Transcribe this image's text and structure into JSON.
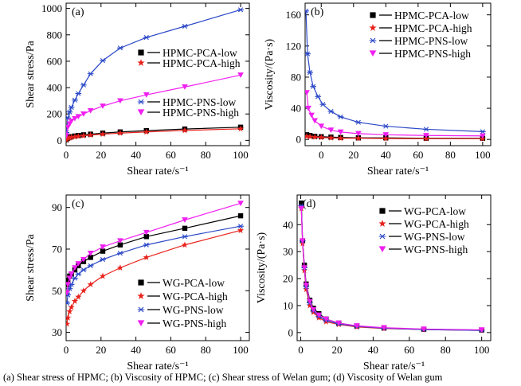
{
  "caption": "(a) Shear stress of HPMC; (b) Viscosity of HPMC; (c) Shear stress of Welan gum; (d) Viscosity of Welan gum",
  "chart_data": [
    {
      "type": "line",
      "panel_label": "(a)",
      "xlabel": "Shear rate/s⁻¹",
      "ylabel": "Shear stress/Pa",
      "xlim": [
        0,
        105
      ],
      "ylim": [
        -40,
        1040
      ],
      "xticks": [
        0,
        20,
        40,
        60,
        80,
        100
      ],
      "yticks": [
        0,
        200,
        400,
        600,
        800,
        1000
      ],
      "grid": false,
      "series": [
        {
          "name": "HPMC-PCA-low",
          "color": "#000000",
          "marker": "square",
          "x": [
            0.1,
            1,
            2,
            3,
            5,
            7,
            10,
            14,
            21,
            31,
            46,
            68,
            100
          ],
          "y": [
            5,
            18,
            24,
            28,
            33,
            37,
            42,
            47,
            55,
            64,
            74,
            86,
            100
          ]
        },
        {
          "name": "HPMC-PCA-high",
          "color": "#e8221c",
          "marker": "star",
          "x": [
            0.1,
            1,
            2,
            3,
            5,
            7,
            10,
            14,
            21,
            31,
            46,
            68,
            100
          ],
          "y": [
            4,
            14,
            19,
            23,
            27,
            31,
            35,
            40,
            47,
            55,
            64,
            75,
            88
          ]
        },
        {
          "name": "HPMC-PNS-low",
          "color": "#2a47c7",
          "marker": "asterisk",
          "x": [
            0.1,
            1,
            2,
            3,
            5,
            7,
            10,
            14,
            21,
            31,
            46,
            68,
            100
          ],
          "y": [
            60,
            170,
            215,
            250,
            305,
            355,
            420,
            505,
            605,
            700,
            780,
            865,
            990
          ]
        },
        {
          "name": "HPMC-PNS-high",
          "color": "#f01ff0",
          "marker": "triangle-down",
          "x": [
            0.1,
            1,
            2,
            3,
            5,
            7,
            10,
            14,
            21,
            31,
            46,
            68,
            100
          ],
          "y": [
            35,
            100,
            125,
            145,
            165,
            180,
            200,
            225,
            260,
            300,
            345,
            405,
            495
          ]
        }
      ]
    },
    {
      "type": "line",
      "panel_label": "(b)",
      "xlabel": "Shear rate/s⁻¹",
      "ylabel": "Viscosity/(Pa·s)",
      "xlim": [
        -10,
        105
      ],
      "ylim": [
        -8,
        175
      ],
      "xticks": [
        0,
        20,
        40,
        60,
        80,
        100
      ],
      "yticks": [
        0,
        40,
        80,
        120,
        160
      ],
      "grid": false,
      "series": [
        {
          "name": "HPMC-PCA-low",
          "color": "#000000",
          "marker": "square",
          "x": [
            -9,
            -7,
            -4,
            0,
            6,
            12,
            23,
            40,
            65,
            100
          ],
          "y": [
            6,
            5,
            4,
            3.5,
            3,
            2.5,
            2,
            2,
            1.5,
            1.5
          ]
        },
        {
          "name": "HPMC-PCA-high",
          "color": "#e8221c",
          "marker": "star",
          "x": [
            -9,
            -7,
            -4,
            0,
            6,
            12,
            23,
            40,
            65,
            100
          ],
          "y": [
            4,
            3.5,
            3,
            2.5,
            2,
            1.5,
            1.5,
            1.2,
            1,
            1
          ]
        },
        {
          "name": "HPMC-PNS-low",
          "color": "#2a47c7",
          "marker": "asterisk",
          "x": [
            -9.5,
            -8.5,
            -7,
            -5,
            -2,
            1,
            6,
            12,
            23,
            40,
            65,
            100
          ],
          "y": [
            165,
            110,
            86,
            68,
            55,
            45,
            36,
            29,
            22,
            17,
            13,
            10
          ]
        },
        {
          "name": "HPMC-PNS-high",
          "color": "#f01ff0",
          "marker": "triangle-down",
          "x": [
            -9,
            -8,
            -6,
            -4,
            0,
            6,
            12,
            23,
            40,
            65,
            100
          ],
          "y": [
            60,
            40,
            31,
            24,
            17,
            12,
            9.5,
            7.5,
            6,
            5,
            4.5
          ]
        }
      ]
    },
    {
      "type": "line",
      "panel_label": "(c)",
      "xlabel": "Shear rate/s⁻¹",
      "ylabel": "Shear stress/Pa",
      "xlim": [
        0,
        105
      ],
      "ylim": [
        26,
        96
      ],
      "xticks": [
        0,
        20,
        40,
        60,
        80,
        100
      ],
      "yticks": [
        30,
        50,
        70,
        90
      ],
      "grid": false,
      "series": [
        {
          "name": "WG-PCA-low",
          "color": "#000000",
          "marker": "square",
          "x": [
            0.5,
            1,
            2,
            3,
            5,
            7,
            10,
            14,
            21,
            31,
            46,
            68,
            100
          ],
          "y": [
            53,
            55,
            57,
            58,
            60,
            62,
            64,
            66,
            69,
            72,
            76,
            80,
            86
          ]
        },
        {
          "name": "WG-PCA-high",
          "color": "#e8221c",
          "marker": "star",
          "x": [
            0.5,
            1,
            2,
            3,
            5,
            7,
            10,
            14,
            21,
            31,
            46,
            68,
            100
          ],
          "y": [
            34,
            37,
            40,
            42,
            45,
            47,
            50,
            53,
            57,
            61,
            66,
            72,
            79
          ]
        },
        {
          "name": "WG-PNS-low",
          "color": "#2a47c7",
          "marker": "asterisk",
          "x": [
            0.5,
            1,
            2,
            3,
            5,
            7,
            10,
            14,
            21,
            31,
            46,
            68,
            100
          ],
          "y": [
            44,
            48,
            51,
            53,
            56,
            58,
            60,
            62,
            65,
            68,
            72,
            76,
            81
          ]
        },
        {
          "name": "WG-PNS-high",
          "color": "#f01ff0",
          "marker": "triangle-down",
          "x": [
            0.5,
            1,
            2,
            3,
            5,
            7,
            10,
            14,
            21,
            31,
            46,
            68,
            100
          ],
          "y": [
            49,
            53,
            56,
            58,
            61,
            63,
            65,
            68,
            71,
            74,
            78,
            84,
            92
          ]
        }
      ]
    },
    {
      "type": "line",
      "panel_label": "(d)",
      "xlabel": "Shear rate/s⁻¹",
      "ylabel": "Viscosity/(Pa·s)",
      "xlim": [
        -2,
        105
      ],
      "ylim": [
        -3,
        51
      ],
      "xticks": [
        0,
        20,
        40,
        60,
        80,
        100
      ],
      "yticks": [
        0,
        10,
        20,
        30,
        40
      ],
      "grid": false,
      "series": [
        {
          "name": "WG-PCA-low",
          "color": "#000000",
          "marker": "square",
          "x": [
            0.3,
            1,
            2,
            3,
            5,
            7,
            10,
            14,
            21,
            31,
            46,
            68,
            100
          ],
          "y": [
            48,
            34,
            25,
            18,
            12,
            9,
            7,
            5,
            3.5,
            2.4,
            1.7,
            1.2,
            0.9
          ]
        },
        {
          "name": "WG-PCA-high",
          "color": "#e8221c",
          "marker": "star",
          "x": [
            0.3,
            1,
            2,
            3,
            5,
            7,
            10,
            14,
            21,
            31,
            46,
            68,
            100
          ],
          "y": [
            46,
            33,
            23,
            16,
            10,
            7.5,
            5.5,
            4,
            3,
            2.1,
            1.5,
            1.1,
            0.8
          ]
        },
        {
          "name": "WG-PNS-low",
          "color": "#2a47c7",
          "marker": "asterisk",
          "x": [
            0.3,
            1,
            2,
            3,
            5,
            7,
            10,
            14,
            21,
            31,
            46,
            68,
            100
          ],
          "y": [
            47,
            34,
            24,
            17,
            11,
            8,
            6,
            4.5,
            3.2,
            2.3,
            1.6,
            1.1,
            0.8
          ]
        },
        {
          "name": "WG-PNS-high",
          "color": "#f01ff0",
          "marker": "triangle-down",
          "x": [
            0.3,
            1,
            2,
            3,
            5,
            7,
            10,
            14,
            21,
            31,
            46,
            68,
            100
          ],
          "y": [
            46,
            34,
            24,
            17.5,
            11.5,
            8.5,
            6.5,
            5,
            3.5,
            2.5,
            1.8,
            1.3,
            1
          ]
        }
      ]
    }
  ]
}
